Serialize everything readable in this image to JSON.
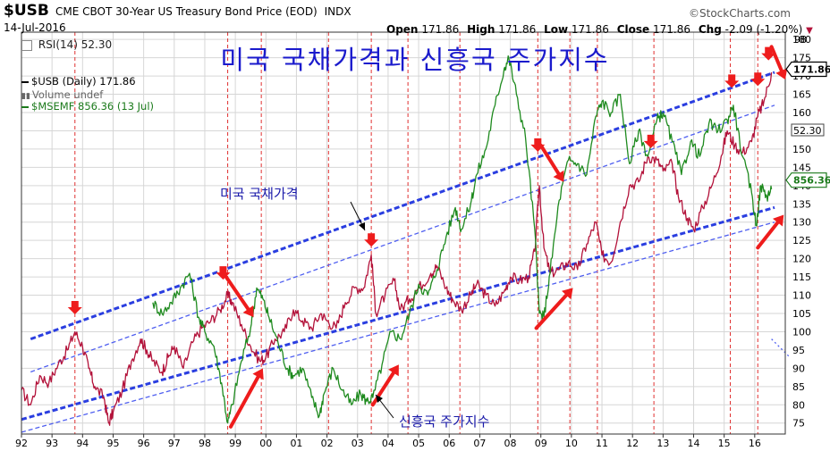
{
  "header": {
    "symbol": "$USB",
    "description": "CME CBOT 30-Year US Treasury Bond Price (EOD)",
    "exchange": "INDX",
    "date": "14-Jul-2016",
    "open_label": "Open",
    "open": "171.86",
    "high_label": "High",
    "high": "171.86",
    "low_label": "Low",
    "low": "171.86",
    "close_label": "Close",
    "close": "171.86",
    "chg_label": "Chg",
    "chg": "-2.09 (-1.20%)",
    "brand": "©StockCharts.com"
  },
  "rsi_label": "RSI(14) 52.30",
  "title": "미국 국채가격과 신흥국 주가지수",
  "legend": [
    {
      "text": "$USB (Daily) 171.86",
      "color": "#000000"
    },
    {
      "text": "Volume undef",
      "color": "#666666"
    },
    {
      "text": "$MSEMF 856.36 (13 Jul)",
      "color": "#1b7a1b"
    }
  ],
  "annotations": {
    "bond": "미국 국채가격",
    "em": "신흥국 주가지수"
  },
  "chart_data": {
    "type": "line",
    "x_ticks": [
      "92",
      "93",
      "94",
      "95",
      "96",
      "97",
      "98",
      "99",
      "00",
      "01",
      "02",
      "03",
      "04",
      "05",
      "06",
      "07",
      "08",
      "09",
      "10",
      "11",
      "12",
      "13",
      "14",
      "15",
      "16"
    ],
    "y_ticks": [
      75,
      80,
      85,
      90,
      95,
      100,
      105,
      110,
      115,
      120,
      125,
      130,
      135,
      140,
      145,
      150,
      155,
      160,
      165,
      170,
      175,
      180
    ],
    "ylim": [
      72,
      182
    ],
    "top_right_labels": [
      "98",
      "52.30"
    ],
    "last_value_badges": [
      {
        "text": "171.86",
        "color": "#000000"
      },
      {
        "text": "856.36",
        "color": "#1b7a1b"
      }
    ],
    "series": [
      {
        "name": "$USB (Daily)",
        "color": "#b3123a",
        "points": [
          [
            1992.0,
            84
          ],
          [
            1992.3,
            80
          ],
          [
            1992.6,
            88
          ],
          [
            1992.9,
            86
          ],
          [
            1993.2,
            91
          ],
          [
            1993.5,
            95
          ],
          [
            1993.75,
            100
          ],
          [
            1994.0,
            96
          ],
          [
            1994.2,
            90
          ],
          [
            1994.4,
            85
          ],
          [
            1994.7,
            82
          ],
          [
            1994.85,
            75
          ],
          [
            1995.0,
            78
          ],
          [
            1995.3,
            84
          ],
          [
            1995.6,
            92
          ],
          [
            1995.9,
            98
          ],
          [
            1996.1,
            95
          ],
          [
            1996.3,
            92
          ],
          [
            1996.6,
            89
          ],
          [
            1996.8,
            93
          ],
          [
            1997.0,
            96
          ],
          [
            1997.3,
            90
          ],
          [
            1997.6,
            97
          ],
          [
            1997.9,
            101
          ],
          [
            1998.2,
            103
          ],
          [
            1998.5,
            106
          ],
          [
            1998.75,
            110
          ],
          [
            1998.9,
            108
          ],
          [
            1999.2,
            102
          ],
          [
            1999.5,
            96
          ],
          [
            1999.8,
            92
          ],
          [
            2000.0,
            93
          ],
          [
            2000.3,
            98
          ],
          [
            2000.6,
            100
          ],
          [
            2000.9,
            106
          ],
          [
            2001.2,
            103
          ],
          [
            2001.5,
            101
          ],
          [
            2001.8,
            105
          ],
          [
            2002.0,
            103
          ],
          [
            2002.3,
            101
          ],
          [
            2002.6,
            108
          ],
          [
            2002.9,
            112
          ],
          [
            2003.2,
            112
          ],
          [
            2003.45,
            121
          ],
          [
            2003.6,
            105
          ],
          [
            2003.9,
            110
          ],
          [
            2004.2,
            114
          ],
          [
            2004.4,
            106
          ],
          [
            2004.7,
            109
          ],
          [
            2005.0,
            112
          ],
          [
            2005.4,
            116
          ],
          [
            2005.6,
            118
          ],
          [
            2005.9,
            112
          ],
          [
            2006.1,
            109
          ],
          [
            2006.4,
            106
          ],
          [
            2006.7,
            110
          ],
          [
            2006.9,
            113
          ],
          [
            2007.2,
            110
          ],
          [
            2007.5,
            107
          ],
          [
            2007.8,
            111
          ],
          [
            2008.0,
            115
          ],
          [
            2008.3,
            114
          ],
          [
            2008.6,
            115
          ],
          [
            2008.8,
            122
          ],
          [
            2008.95,
            140
          ],
          [
            2009.1,
            123
          ],
          [
            2009.3,
            116
          ],
          [
            2009.6,
            117
          ],
          [
            2009.9,
            119
          ],
          [
            2010.2,
            117
          ],
          [
            2010.5,
            124
          ],
          [
            2010.8,
            130
          ],
          [
            2011.0,
            121
          ],
          [
            2011.3,
            119
          ],
          [
            2011.6,
            130
          ],
          [
            2011.9,
            140
          ],
          [
            2012.2,
            141
          ],
          [
            2012.5,
            148
          ],
          [
            2012.8,
            147
          ],
          [
            2013.0,
            144
          ],
          [
            2013.3,
            146
          ],
          [
            2013.5,
            137
          ],
          [
            2013.8,
            131
          ],
          [
            2014.0,
            128
          ],
          [
            2014.3,
            134
          ],
          [
            2014.6,
            140
          ],
          [
            2014.9,
            148
          ],
          [
            2015.1,
            155
          ],
          [
            2015.35,
            151
          ],
          [
            2015.6,
            149
          ],
          [
            2015.9,
            152
          ],
          [
            2016.1,
            159
          ],
          [
            2016.3,
            163
          ],
          [
            2016.55,
            171
          ]
        ]
      },
      {
        "name": "$MSEMF",
        "color": "#1e8a1e",
        "points": [
          [
            1996.3,
            108
          ],
          [
            1996.6,
            105
          ],
          [
            1996.9,
            108
          ],
          [
            1997.2,
            112
          ],
          [
            1997.5,
            116
          ],
          [
            1997.8,
            104
          ],
          [
            1998.0,
            100
          ],
          [
            1998.3,
            96
          ],
          [
            1998.55,
            86
          ],
          [
            1998.75,
            75
          ],
          [
            1998.9,
            80
          ],
          [
            1999.2,
            92
          ],
          [
            1999.5,
            101
          ],
          [
            1999.7,
            112
          ],
          [
            1999.9,
            109
          ],
          [
            2000.1,
            104
          ],
          [
            2000.4,
            97
          ],
          [
            2000.7,
            90
          ],
          [
            2000.9,
            88
          ],
          [
            2001.2,
            90
          ],
          [
            2001.5,
            82
          ],
          [
            2001.75,
            77
          ],
          [
            2001.9,
            83
          ],
          [
            2002.2,
            90
          ],
          [
            2002.5,
            84
          ],
          [
            2002.8,
            80
          ],
          [
            2003.1,
            83
          ],
          [
            2003.3,
            81
          ],
          [
            2003.5,
            82
          ],
          [
            2003.8,
            91
          ],
          [
            2004.1,
            100
          ],
          [
            2004.4,
            98
          ],
          [
            2004.7,
            105
          ],
          [
            2005.0,
            113
          ],
          [
            2005.3,
            110
          ],
          [
            2005.6,
            117
          ],
          [
            2005.9,
            126
          ],
          [
            2006.2,
            134
          ],
          [
            2006.4,
            128
          ],
          [
            2006.7,
            135
          ],
          [
            2006.9,
            143
          ],
          [
            2007.2,
            150
          ],
          [
            2007.5,
            162
          ],
          [
            2007.8,
            172
          ],
          [
            2007.95,
            175
          ],
          [
            2008.2,
            165
          ],
          [
            2008.5,
            153
          ],
          [
            2008.8,
            128
          ],
          [
            2008.95,
            105
          ],
          [
            2009.1,
            104
          ],
          [
            2009.3,
            116
          ],
          [
            2009.6,
            136
          ],
          [
            2009.9,
            147
          ],
          [
            2010.2,
            146
          ],
          [
            2010.5,
            143
          ],
          [
            2010.8,
            159
          ],
          [
            2011.0,
            163
          ],
          [
            2011.3,
            160
          ],
          [
            2011.6,
            165
          ],
          [
            2011.9,
            146
          ],
          [
            2012.2,
            155
          ],
          [
            2012.5,
            148
          ],
          [
            2012.8,
            158
          ],
          [
            2013.0,
            160
          ],
          [
            2013.3,
            152
          ],
          [
            2013.6,
            143
          ],
          [
            2013.9,
            152
          ],
          [
            2014.2,
            148
          ],
          [
            2014.5,
            157
          ],
          [
            2014.8,
            155
          ],
          [
            2015.1,
            158
          ],
          [
            2015.3,
            162
          ],
          [
            2015.6,
            148
          ],
          [
            2015.9,
            138
          ],
          [
            2016.05,
            129
          ],
          [
            2016.2,
            140
          ],
          [
            2016.4,
            137
          ],
          [
            2016.55,
            139
          ]
        ]
      }
    ],
    "trend_lines": [
      {
        "style": "thick",
        "color": "#2a3ee0",
        "from": [
          1992.3,
          98
        ],
        "to": [
          2016.65,
          171
        ]
      },
      {
        "style": "thin",
        "color": "#4f5ff0",
        "from": [
          1992.3,
          89
        ],
        "to": [
          2016.65,
          162
        ]
      },
      {
        "style": "thick",
        "color": "#2a3ee0",
        "from": [
          1992.0,
          76
        ],
        "to": [
          2016.65,
          134
        ]
      },
      {
        "style": "thin",
        "color": "#4f5ff0",
        "from": [
          1992.0,
          72.5
        ],
        "to": [
          2016.65,
          130
        ]
      }
    ],
    "dotted_extension": {
      "from": [
        2016.55,
        98
      ],
      "to": [
        2017.15,
        93
      ]
    },
    "vertical_markers": [
      1993.75,
      1998.75,
      1999.85,
      2002.05,
      2003.45,
      2004.65,
      2006.35,
      2008.9,
      2009.95,
      2010.85,
      2012.7,
      2015.2,
      2016.1
    ],
    "down_arrows_red": [
      [
        1993.75,
        105.5
      ],
      [
        1998.6,
        115
      ],
      [
        2003.45,
        124
      ],
      [
        2008.9,
        150
      ],
      [
        2012.6,
        151
      ],
      [
        2015.25,
        167.5
      ],
      [
        2016.1,
        168
      ],
      [
        2016.45,
        175
      ]
    ],
    "diagonal_arrows_red": [
      {
        "from": [
          1998.7,
          115
        ],
        "to": [
          1999.6,
          104
        ]
      },
      {
        "from": [
          1998.85,
          74
        ],
        "to": [
          1999.9,
          90
        ]
      },
      {
        "from": [
          2003.5,
          80
        ],
        "to": [
          2004.35,
          91
        ]
      },
      {
        "from": [
          2009.0,
          151
        ],
        "to": [
          2009.75,
          141
        ]
      },
      {
        "from": [
          2008.85,
          101
        ],
        "to": [
          2010.05,
          112
        ]
      },
      {
        "from": [
          2016.1,
          123
        ],
        "to": [
          2016.95,
          132
        ]
      },
      {
        "from": [
          2016.55,
          178
        ],
        "to": [
          2017.0,
          169
        ]
      }
    ]
  }
}
